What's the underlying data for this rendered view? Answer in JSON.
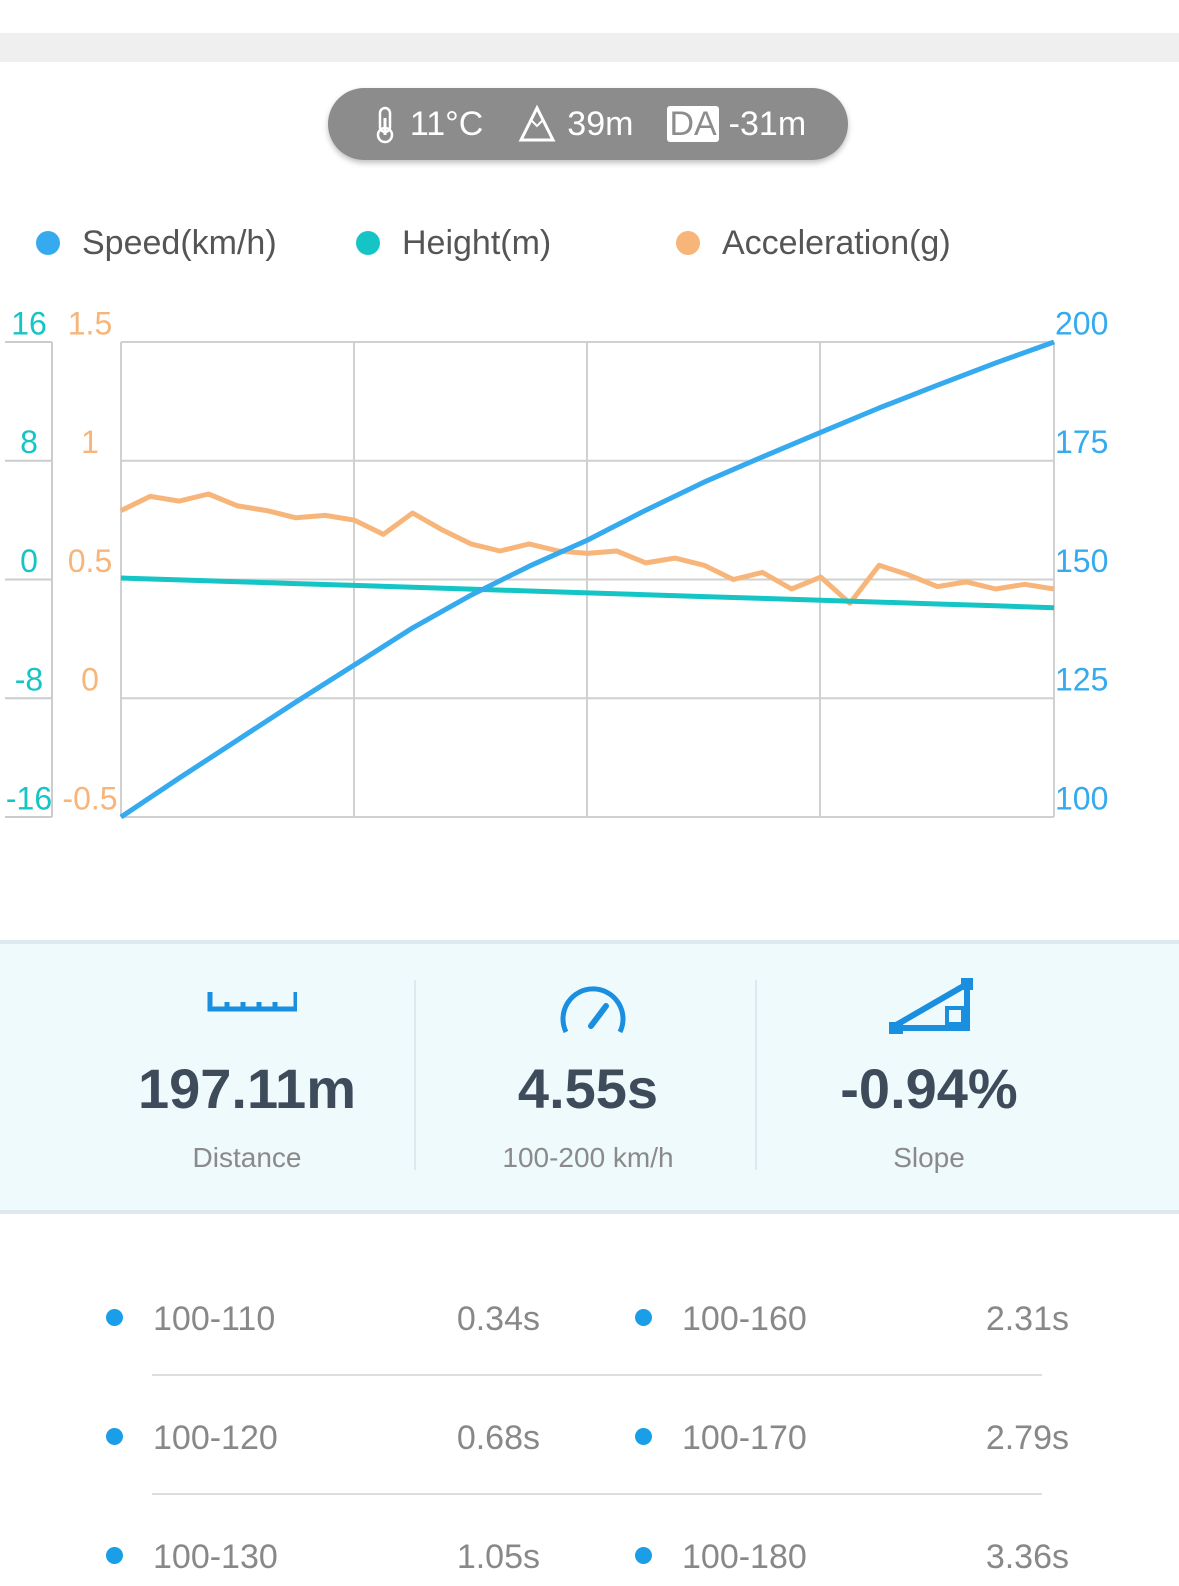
{
  "conditions": {
    "temperature": "11°C",
    "altitude": "39m",
    "da_badge": "DA",
    "density_altitude": "-31m"
  },
  "chart_data": {
    "type": "line",
    "series": [
      {
        "name": "Speed(km/h)",
        "color": "#35aaee",
        "axis": "y",
        "values": [
          100,
          108.2,
          116.2,
          124.2,
          132,
          139.8,
          146.7,
          152.8,
          158.3,
          164.6,
          170.5,
          175.8,
          181,
          186.1,
          190.9,
          195.6,
          200
        ]
      },
      {
        "name": "Height(m)",
        "color": "#15c4c4",
        "axis": "y2",
        "values": [
          0.1,
          -0.025,
          -0.15,
          -0.275,
          -0.4,
          -0.525,
          -0.65,
          -0.775,
          -0.9,
          -1.025,
          -1.15,
          -1.275,
          -1.4,
          -1.525,
          -1.65,
          -1.775,
          -1.9
        ]
      },
      {
        "name": "Acceleration(g)",
        "color": "#f7b57a",
        "axis": "y3",
        "values": [
          0.79,
          0.85,
          0.83,
          0.86,
          0.81,
          0.79,
          0.76,
          0.77,
          0.75,
          0.69,
          0.78,
          0.71,
          0.65,
          0.62,
          0.65,
          0.62,
          0.61,
          0.62,
          0.57,
          0.59,
          0.56,
          0.5,
          0.53,
          0.46,
          0.51,
          0.4,
          0.56,
          0.52,
          0.47,
          0.49,
          0.46,
          0.48,
          0.46
        ]
      }
    ],
    "ylim": [
      100,
      200
    ],
    "yticks": [
      100,
      125,
      150,
      175,
      200
    ],
    "y2lim": [
      -16,
      16
    ],
    "y2ticks": [
      -16,
      -8,
      0,
      8,
      16
    ],
    "y3lim": [
      -0.5,
      1.5
    ],
    "y3ticks": [
      -0.5,
      0,
      0.5,
      1,
      1.5
    ],
    "grid": true,
    "legend": "top"
  },
  "stats": [
    {
      "value": "197.11m",
      "label": "Distance"
    },
    {
      "value": "4.55s",
      "label": "100-200 km/h"
    },
    {
      "value": "-0.94%",
      "label": "Slope"
    }
  ],
  "splits": [
    [
      {
        "range": "100-110",
        "time": "0.34s"
      },
      {
        "range": "100-160",
        "time": "2.31s"
      }
    ],
    [
      {
        "range": "100-120",
        "time": "0.68s"
      },
      {
        "range": "100-170",
        "time": "2.79s"
      }
    ],
    [
      {
        "range": "100-130",
        "time": "1.05s"
      },
      {
        "range": "100-180",
        "time": "3.36s"
      }
    ]
  ]
}
